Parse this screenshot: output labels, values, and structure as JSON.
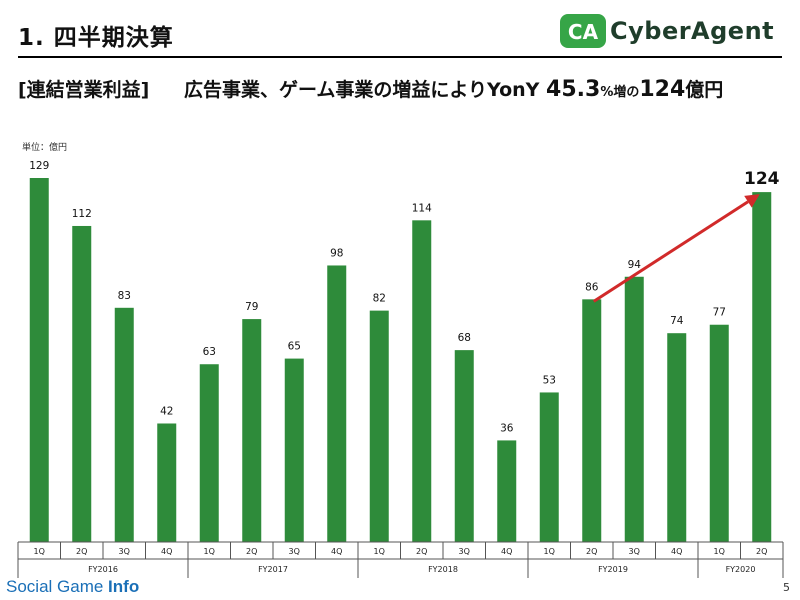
{
  "header": {
    "title": "1. 四半期決算",
    "logo_text": "CyberAgent",
    "logo_mark": "CA",
    "subtitle_tag": "[連結営業利益]",
    "subtitle_main": "広告事業、ゲーム事業の増益によりYonY",
    "subtitle_pct_value": "45.3",
    "subtitle_pct_unit": "%増の",
    "subtitle_amount": "124",
    "subtitle_amount_unit": "億円"
  },
  "unit_label": "単位：億円",
  "footer": {
    "watermark_left": "Social Game ",
    "watermark_right": "Info",
    "page_number": "5"
  },
  "colors": {
    "bar": "#2e8b3a",
    "arrow": "#d12a2a",
    "axis": "#555555"
  },
  "chart_data": {
    "type": "bar",
    "title": "",
    "xlabel": "",
    "ylabel": "",
    "ylim": [
      0,
      129
    ],
    "grid": false,
    "categories": [
      "1Q",
      "2Q",
      "3Q",
      "4Q",
      "1Q",
      "2Q",
      "3Q",
      "4Q",
      "1Q",
      "2Q",
      "3Q",
      "4Q",
      "1Q",
      "2Q",
      "3Q",
      "4Q",
      "1Q",
      "2Q"
    ],
    "values": [
      129,
      112,
      83,
      42,
      63,
      79,
      65,
      98,
      82,
      114,
      68,
      36,
      53,
      86,
      94,
      74,
      77,
      124
    ],
    "groups": [
      {
        "label": "FY2016",
        "count": 4
      },
      {
        "label": "FY2017",
        "count": 4
      },
      {
        "label": "FY2018",
        "count": 4
      },
      {
        "label": "FY2019",
        "count": 4
      },
      {
        "label": "FY2020",
        "count": 2
      }
    ],
    "highlight_index": 17,
    "annotation_arrow": {
      "from_index": 13,
      "to_index": 17
    }
  }
}
